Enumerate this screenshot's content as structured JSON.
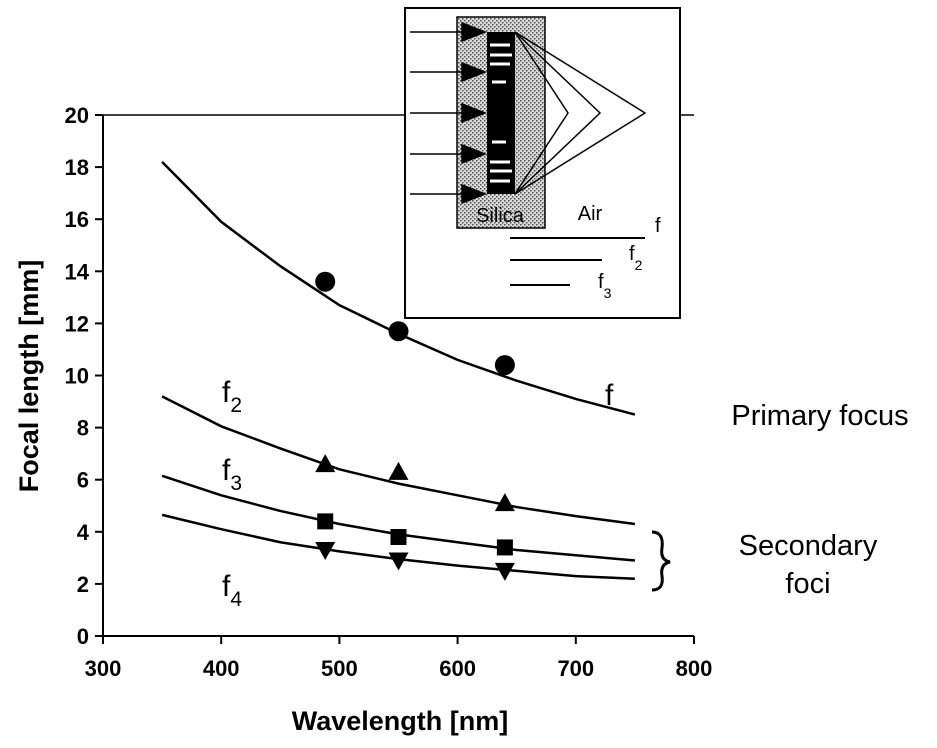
{
  "chart_data": {
    "type": "line",
    "xlabel": "Wavelength [nm]",
    "ylabel": "Focal length [mm]",
    "xlim": [
      300,
      800
    ],
    "ylim": [
      0,
      20
    ],
    "xticks": [
      300,
      400,
      500,
      600,
      700,
      800
    ],
    "yticks": [
      0,
      2,
      4,
      6,
      8,
      10,
      12,
      14,
      16,
      18,
      20
    ],
    "x": [
      350,
      400,
      450,
      500,
      550,
      600,
      650,
      700,
      750
    ],
    "series": [
      {
        "name": "f",
        "color": "#000000",
        "values": [
          18.2,
          15.9,
          14.2,
          12.7,
          11.6,
          10.6,
          9.8,
          9.1,
          8.5
        ]
      },
      {
        "name": "f",
        "subscript": "2",
        "color": "#000000",
        "values": [
          9.2,
          8.05,
          7.2,
          6.4,
          5.85,
          5.4,
          4.95,
          4.6,
          4.3
        ]
      },
      {
        "name": "f",
        "subscript": "3",
        "color": "#000000",
        "values": [
          6.15,
          5.4,
          4.8,
          4.3,
          3.9,
          3.6,
          3.3,
          3.1,
          2.9
        ]
      },
      {
        "name": "f",
        "subscript": "4",
        "color": "#000000",
        "values": [
          4.65,
          4.1,
          3.6,
          3.25,
          2.95,
          2.7,
          2.5,
          2.3,
          2.2
        ]
      }
    ],
    "markers": [
      {
        "marker": "circle",
        "color": "#000000",
        "x": [
          488,
          550,
          640
        ],
        "values": [
          13.6,
          11.7,
          10.4
        ]
      },
      {
        "marker": "triangle-up",
        "color": "#000000",
        "x": [
          488,
          550,
          640
        ],
        "values": [
          6.6,
          6.3,
          5.1
        ]
      },
      {
        "marker": "square",
        "color": "#000000",
        "x": [
          488,
          550,
          640
        ],
        "values": [
          4.4,
          3.8,
          3.4
        ]
      },
      {
        "marker": "triangle-down",
        "color": "#000000",
        "x": [
          488,
          550,
          640
        ],
        "values": [
          3.3,
          2.9,
          2.5
        ]
      }
    ],
    "annotations": {
      "primary": "Primary focus",
      "secondary": [
        "Secondary",
        "foci"
      ]
    },
    "inset": {
      "silica": "Silica",
      "air": "Air",
      "foci": [
        {
          "name": "f"
        },
        {
          "name": "f",
          "subscript": "2"
        },
        {
          "name": "f",
          "subscript": "3"
        }
      ]
    }
  }
}
